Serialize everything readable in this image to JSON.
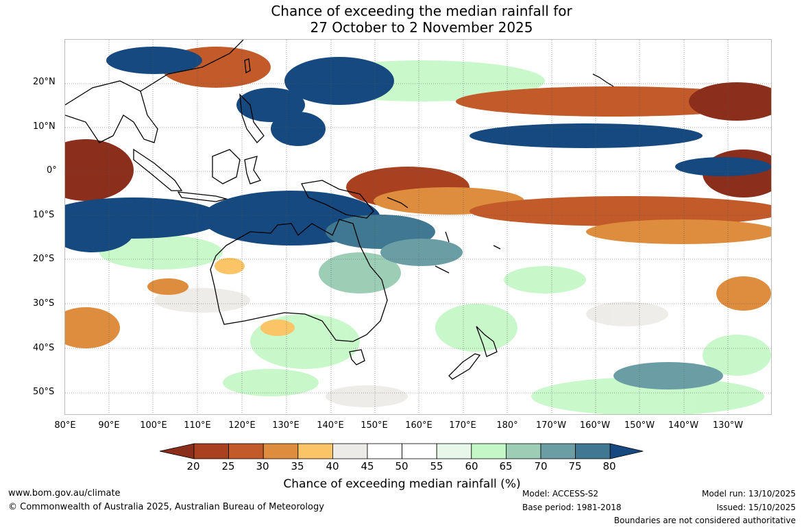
{
  "title": {
    "line1": "Chance of exceeding the median rainfall for",
    "line2": "27 October to 2 November 2025"
  },
  "latitude_labels": [
    "20°N",
    "10°N",
    "0°",
    "10°S",
    "20°S",
    "30°S",
    "40°S",
    "50°S"
  ],
  "longitude_labels": [
    "80°E",
    "90°E",
    "100°E",
    "110°E",
    "120°E",
    "130°E",
    "140°E",
    "150°E",
    "160°E",
    "170°E",
    "180°",
    "170°W",
    "160°W",
    "150°W",
    "140°W",
    "130°W"
  ],
  "colorbar": {
    "ticks": [
      "20",
      "25",
      "30",
      "35",
      "40",
      "45",
      "50",
      "55",
      "60",
      "65",
      "70",
      "75",
      "80"
    ],
    "colors": [
      "#8b2e1b",
      "#a9401f",
      "#c25a2a",
      "#de8c3e",
      "#fbc567",
      "#ecebe7",
      "#ffffff",
      "#ffffff",
      "#e8f8e8",
      "#c3f7c5",
      "#9ccdb5",
      "#6b9ea4",
      "#3f7890",
      "#15497f"
    ],
    "label": "Chance of exceeding median rainfall (%)"
  },
  "footer": {
    "website": "www.bom.gov.au/climate",
    "copyright": "© Commonwealth of Australia 2025, Australian Bureau of Meteorology",
    "model": "Model: ACCESS-S2",
    "base_period": "Base period: 1981-2018",
    "model_run": "Model run: 13/10/2025",
    "issued": "Issued: 15/10/2025",
    "disclaimer": "Boundaries are not considered authoritative"
  }
}
